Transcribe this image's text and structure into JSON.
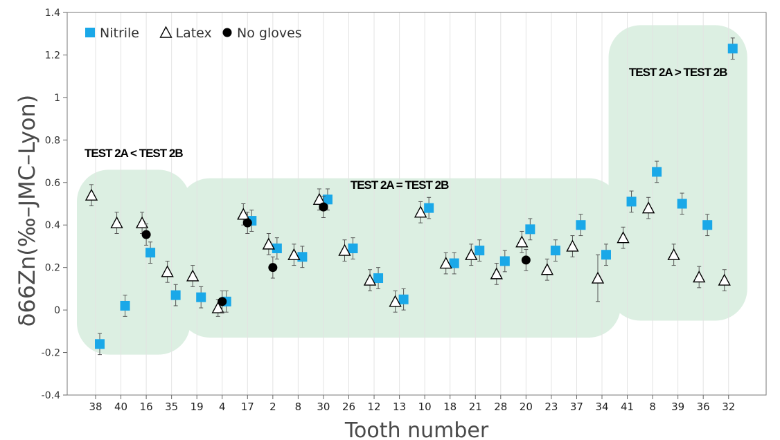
{
  "chart_data": {
    "type": "scatter",
    "xlabel": "Tooth number",
    "ylabel": "δ66Zn(‰–JMC–Lyon)",
    "ylim": [
      -0.4,
      1.4
    ],
    "yticks": [
      1.4,
      1.2,
      1,
      0.8,
      0.6,
      0.4,
      0.2,
      0,
      -0.2,
      -0.4
    ],
    "ytick_labels": [
      "1.4",
      "1.2",
      "1",
      "0.8",
      "0.6",
      "0.4",
      "0.2",
      "0",
      "-0.2",
      "-0.4"
    ],
    "categories": [
      "38",
      "40",
      "16",
      "35",
      "19",
      "4",
      "17",
      "2",
      "8",
      "30",
      "26",
      "12",
      "13",
      "10",
      "18",
      "21",
      "28",
      "20",
      "23",
      "37",
      "34",
      "41",
      "8",
      "39",
      "36",
      "32"
    ],
    "grid": "vertical",
    "legend_position": "top-left",
    "series": [
      {
        "name": "Nitrile",
        "marker": "square",
        "color": "#1aa8e8",
        "points": [
          {
            "x": 0,
            "y": -0.16,
            "err": 0.05
          },
          {
            "x": 1,
            "y": 0.02,
            "err": 0.05
          },
          {
            "x": 2,
            "y": 0.27,
            "err": 0.05
          },
          {
            "x": 3,
            "y": 0.07,
            "err": 0.05
          },
          {
            "x": 4,
            "y": 0.06,
            "err": 0.05
          },
          {
            "x": 5,
            "y": 0.04,
            "err": 0.05
          },
          {
            "x": 6,
            "y": 0.42,
            "err": 0.05
          },
          {
            "x": 7,
            "y": 0.29,
            "err": 0.05
          },
          {
            "x": 8,
            "y": 0.25,
            "err": 0.05
          },
          {
            "x": 9,
            "y": 0.52,
            "err": 0.05
          },
          {
            "x": 10,
            "y": 0.29,
            "err": 0.05
          },
          {
            "x": 11,
            "y": 0.15,
            "err": 0.05
          },
          {
            "x": 12,
            "y": 0.05,
            "err": 0.05
          },
          {
            "x": 13,
            "y": 0.48,
            "err": 0.05
          },
          {
            "x": 14,
            "y": 0.22,
            "err": 0.05
          },
          {
            "x": 15,
            "y": 0.28,
            "err": 0.05
          },
          {
            "x": 16,
            "y": 0.23,
            "err": 0.05
          },
          {
            "x": 17,
            "y": 0.38,
            "err": 0.05
          },
          {
            "x": 18,
            "y": 0.28,
            "err": 0.05
          },
          {
            "x": 19,
            "y": 0.4,
            "err": 0.05
          },
          {
            "x": 20,
            "y": 0.26,
            "err": 0.05
          },
          {
            "x": 21,
            "y": 0.51,
            "err": 0.05
          },
          {
            "x": 22,
            "y": 0.65,
            "err": 0.05
          },
          {
            "x": 23,
            "y": 0.5,
            "err": 0.05
          },
          {
            "x": 24,
            "y": 0.4,
            "err": 0.05
          },
          {
            "x": 25,
            "y": 1.23,
            "err": 0.05
          }
        ]
      },
      {
        "name": "Latex",
        "marker": "triangle",
        "color": "#000000",
        "points": [
          {
            "x": 0,
            "y": 0.54,
            "err": 0.05
          },
          {
            "x": 1,
            "y": 0.41,
            "err": 0.05
          },
          {
            "x": 2,
            "y": 0.41,
            "err": 0.05
          },
          {
            "x": 3,
            "y": 0.18,
            "err": 0.05
          },
          {
            "x": 4,
            "y": 0.16,
            "err": 0.05
          },
          {
            "x": 5,
            "y": 0.01,
            "err": 0.04
          },
          {
            "x": 6,
            "y": 0.45,
            "err": 0.05
          },
          {
            "x": 7,
            "y": 0.31,
            "err": 0.05
          },
          {
            "x": 8,
            "y": 0.26,
            "err": 0.05
          },
          {
            "x": 9,
            "y": 0.52,
            "err": 0.05
          },
          {
            "x": 10,
            "y": 0.28,
            "err": 0.05
          },
          {
            "x": 11,
            "y": 0.14,
            "err": 0.05
          },
          {
            "x": 12,
            "y": 0.04,
            "err": 0.05
          },
          {
            "x": 13,
            "y": 0.46,
            "err": 0.05
          },
          {
            "x": 14,
            "y": 0.22,
            "err": 0.05
          },
          {
            "x": 15,
            "y": 0.26,
            "err": 0.05
          },
          {
            "x": 16,
            "y": 0.17,
            "err": 0.05
          },
          {
            "x": 17,
            "y": 0.32,
            "err": 0.05
          },
          {
            "x": 18,
            "y": 0.19,
            "err": 0.05
          },
          {
            "x": 19,
            "y": 0.3,
            "err": 0.05
          },
          {
            "x": 20,
            "y": 0.15,
            "err": 0.11
          },
          {
            "x": 21,
            "y": 0.34,
            "err": 0.05
          },
          {
            "x": 22,
            "y": 0.48,
            "err": 0.05
          },
          {
            "x": 23,
            "y": 0.26,
            "err": 0.05
          },
          {
            "x": 24,
            "y": 0.155,
            "err": 0.05
          },
          {
            "x": 25,
            "y": 0.14,
            "err": 0.05
          }
        ]
      },
      {
        "name": "No gloves",
        "marker": "circle",
        "color": "#000000",
        "points": [
          {
            "x": 2,
            "y": 0.355,
            "err": 0.05
          },
          {
            "x": 5,
            "y": 0.04,
            "err": 0.05
          },
          {
            "x": 6,
            "y": 0.41,
            "err": 0.05
          },
          {
            "x": 7,
            "y": 0.2,
            "err": 0.05
          },
          {
            "x": 9,
            "y": 0.485,
            "err": 0.05
          },
          {
            "x": 17,
            "y": 0.235,
            "err": 0.05
          }
        ]
      }
    ],
    "regions": [
      {
        "label": "TEST 2A < TEST 2B",
        "from": 0,
        "to": 3,
        "ymin": -0.21,
        "ymax": 0.66,
        "label_y": 0.72
      },
      {
        "label": "TEST 2A = TEST 2B",
        "from": 4,
        "to": 20,
        "ymin": -0.13,
        "ymax": 0.62,
        "label_y": 0.57
      },
      {
        "label": "TEST 2A > TEST 2B",
        "from": 21,
        "to": 25,
        "ymin": -0.05,
        "ymax": 1.34,
        "label_y": 1.1
      }
    ],
    "region_color": "#dcefe2"
  }
}
